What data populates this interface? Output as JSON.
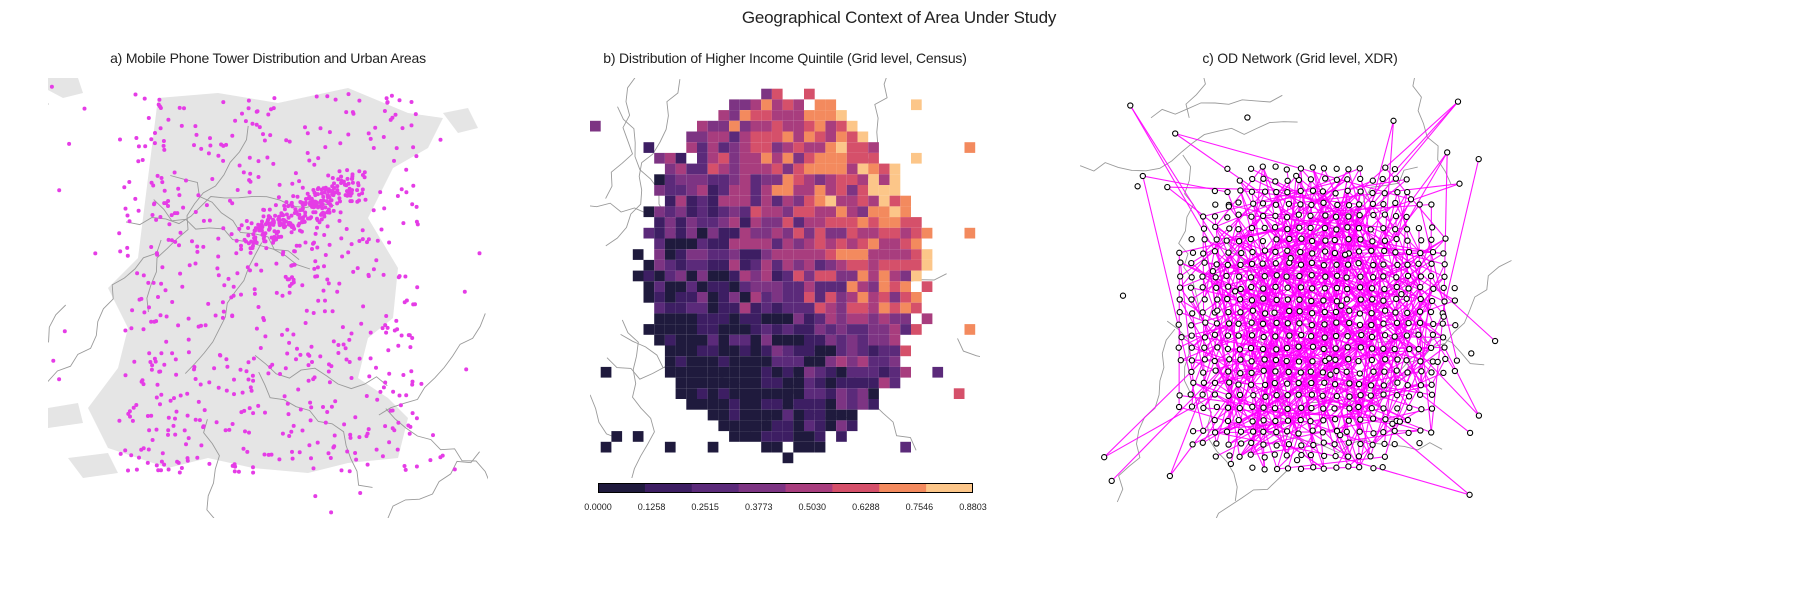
{
  "figure": {
    "title": "Geographical Context of Area Under Study"
  },
  "panels": [
    {
      "id": "a",
      "title": "a) Mobile Phone Tower Distribution and Urban Areas",
      "marker_color": "#e53ce6",
      "urban_color": "#e5e5e5"
    },
    {
      "id": "b",
      "title": "b) Distribution of Higher Income Quintile (Grid level, Census)"
    },
    {
      "id": "c",
      "title": "c) OD Network (Grid level, XDR)",
      "edge_color": "#ff00ff",
      "node_fill": "#ffffff",
      "node_stroke": "#000000"
    }
  ],
  "colorbar": {
    "colormap": "magma-like",
    "ticks": [
      "0.0000",
      "0.1258",
      "0.2515",
      "0.3773",
      "0.5030",
      "0.6288",
      "0.7546",
      "0.8803"
    ],
    "colors": [
      "#1f1a3d",
      "#3d1e63",
      "#5b2a7a",
      "#7d3483",
      "#a83d7e",
      "#d5506a",
      "#f38a5e",
      "#fcc689"
    ]
  }
}
